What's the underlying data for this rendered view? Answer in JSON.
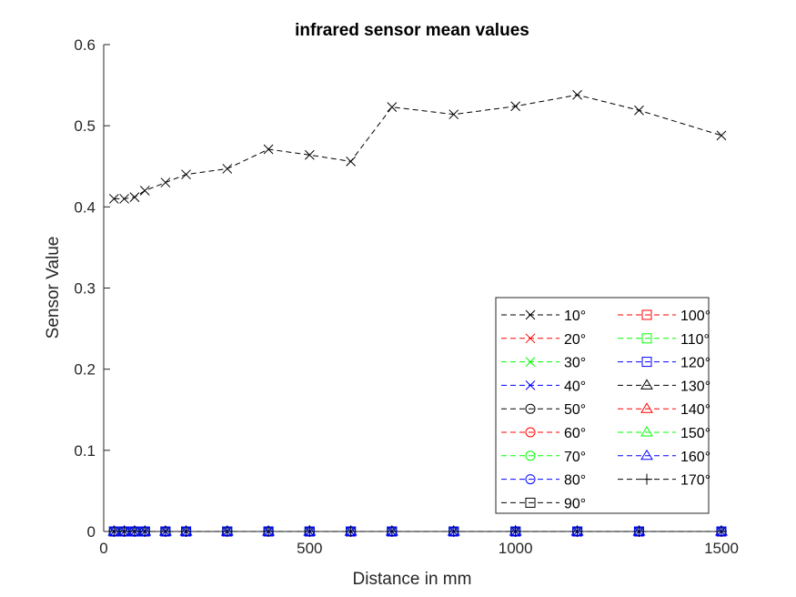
{
  "chart_data": {
    "type": "line",
    "title": "infrared sensor mean values",
    "xlabel": "Distance in mm",
    "ylabel": "Sensor Value",
    "xlim": [
      0,
      1500
    ],
    "ylim": [
      0,
      0.6
    ],
    "xticks": [
      0,
      500,
      1000,
      1500
    ],
    "yticks": [
      0,
      0.1,
      0.2,
      0.3,
      0.4,
      0.5,
      0.6
    ],
    "xtick_labels": [
      "0",
      "500",
      "1000",
      "1500"
    ],
    "ytick_labels": [
      "0",
      "0.1",
      "0.2",
      "0.3",
      "0.4",
      "0.5",
      "0.6"
    ],
    "grid": false,
    "legend_position": "bottom-right",
    "x": [
      25,
      50,
      75,
      100,
      150,
      200,
      300,
      400,
      500,
      600,
      700,
      850,
      1000,
      1150,
      1300,
      1500
    ],
    "series": [
      {
        "name": "10°",
        "color": "#000000",
        "marker": "x",
        "values": [
          0.41,
          0.41,
          0.412,
          0.42,
          0.43,
          0.44,
          0.447,
          0.471,
          0.464,
          0.456,
          0.523,
          0.514,
          0.524,
          0.538,
          0.519,
          0.488
        ]
      },
      {
        "name": "20°",
        "color": "#ff0000",
        "marker": "x",
        "values": [
          0,
          0,
          0,
          0,
          0,
          0,
          0,
          0,
          0,
          0,
          0,
          0,
          0,
          0,
          0,
          0
        ]
      },
      {
        "name": "30°",
        "color": "#00ff00",
        "marker": "x",
        "values": [
          0,
          0,
          0,
          0,
          0,
          0,
          0,
          0,
          0,
          0,
          0,
          0,
          0,
          0,
          0,
          0
        ]
      },
      {
        "name": "40°",
        "color": "#0000ff",
        "marker": "x",
        "values": [
          0,
          0,
          0,
          0,
          0,
          0,
          0,
          0,
          0,
          0,
          0,
          0,
          0,
          0,
          0,
          0
        ]
      },
      {
        "name": "50°",
        "color": "#000000",
        "marker": "o",
        "values": [
          0,
          0,
          0,
          0,
          0,
          0,
          0,
          0,
          0,
          0,
          0,
          0,
          0,
          0,
          0,
          0
        ]
      },
      {
        "name": "60°",
        "color": "#ff0000",
        "marker": "o",
        "values": [
          0,
          0,
          0,
          0,
          0,
          0,
          0,
          0,
          0,
          0,
          0,
          0,
          0,
          0,
          0,
          0
        ]
      },
      {
        "name": "70°",
        "color": "#00ff00",
        "marker": "o",
        "values": [
          0,
          0,
          0,
          0,
          0,
          0,
          0,
          0,
          0,
          0,
          0,
          0,
          0,
          0,
          0,
          0
        ]
      },
      {
        "name": "80°",
        "color": "#0000ff",
        "marker": "o",
        "values": [
          0,
          0,
          0,
          0,
          0,
          0,
          0,
          0,
          0,
          0,
          0,
          0,
          0,
          0,
          0,
          0
        ]
      },
      {
        "name": "90°",
        "color": "#000000",
        "marker": "s",
        "values": [
          0,
          0,
          0,
          0,
          0,
          0,
          0,
          0,
          0,
          0,
          0,
          0,
          0,
          0,
          0,
          0
        ]
      },
      {
        "name": "100°",
        "color": "#ff0000",
        "marker": "s",
        "values": [
          0,
          0,
          0,
          0,
          0,
          0,
          0,
          0,
          0,
          0,
          0,
          0,
          0,
          0,
          0,
          0
        ]
      },
      {
        "name": "110°",
        "color": "#00ff00",
        "marker": "s",
        "values": [
          0,
          0,
          0,
          0,
          0,
          0,
          0,
          0,
          0,
          0,
          0,
          0,
          0,
          0,
          0,
          0
        ]
      },
      {
        "name": "120°",
        "color": "#0000ff",
        "marker": "s",
        "values": [
          0,
          0,
          0,
          0,
          0,
          0,
          0,
          0,
          0,
          0,
          0,
          0,
          0,
          0,
          0,
          0
        ]
      },
      {
        "name": "130°",
        "color": "#000000",
        "marker": "^",
        "values": [
          0,
          0,
          0,
          0,
          0,
          0,
          0,
          0,
          0,
          0,
          0,
          0,
          0,
          0,
          0,
          0
        ]
      },
      {
        "name": "140°",
        "color": "#ff0000",
        "marker": "^",
        "values": [
          0,
          0,
          0,
          0,
          0,
          0,
          0,
          0,
          0,
          0,
          0,
          0,
          0,
          0,
          0,
          0
        ]
      },
      {
        "name": "150°",
        "color": "#00ff00",
        "marker": "^",
        "values": [
          0,
          0,
          0,
          0,
          0,
          0,
          0,
          0,
          0,
          0,
          0,
          0,
          0,
          0,
          0,
          0
        ]
      },
      {
        "name": "160°",
        "color": "#0000ff",
        "marker": "^",
        "values": [
          0,
          0,
          0,
          0,
          0,
          0,
          0,
          0,
          0,
          0,
          0,
          0,
          0,
          0,
          0,
          0
        ]
      },
      {
        "name": "170°",
        "color": "#000000",
        "marker": "+",
        "values": [
          0,
          0,
          0,
          0,
          0,
          0,
          0,
          0,
          0,
          0,
          0,
          0,
          0,
          0,
          0,
          0
        ]
      }
    ]
  }
}
